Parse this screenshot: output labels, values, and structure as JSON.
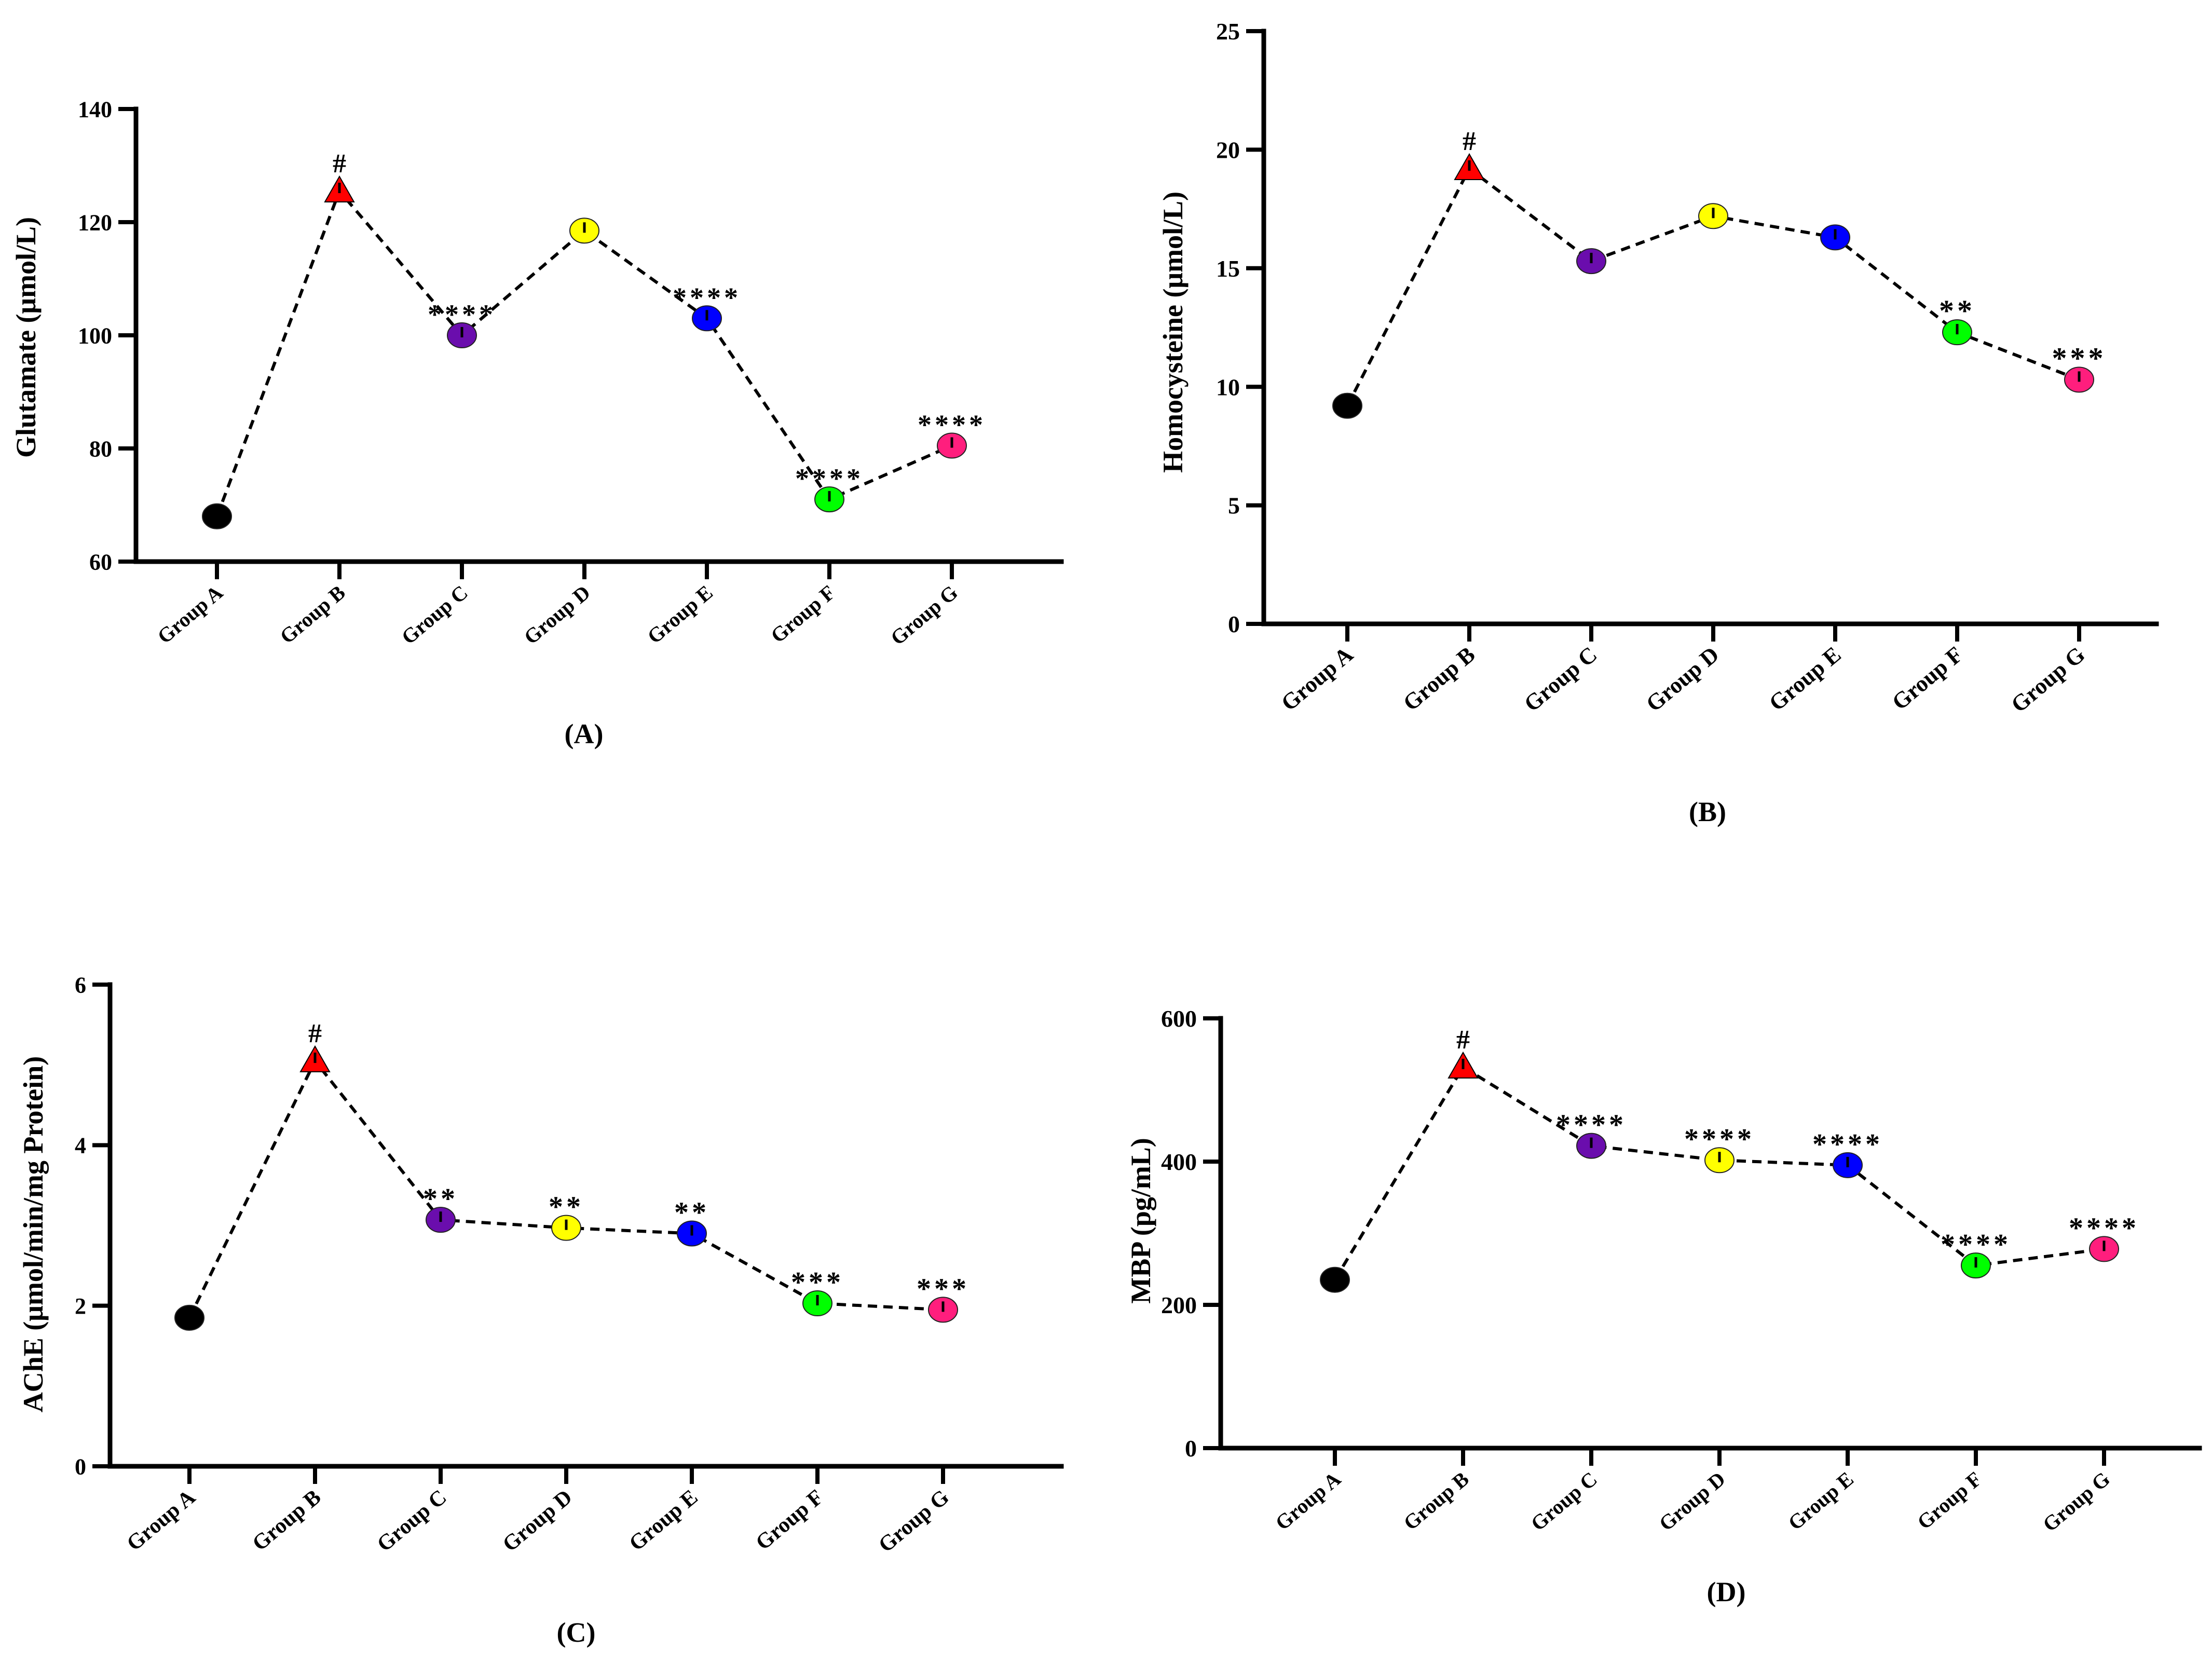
{
  "figure": {
    "groups": [
      "Group A",
      "Group B",
      "Group C",
      "Group D",
      "Group E",
      "Group F",
      "Group G"
    ],
    "point_colors": [
      "#000000",
      "#ff0000",
      "#6a0dad",
      "#ffff00",
      "#0000ff",
      "#00ff00",
      "#ff1e7d"
    ],
    "point_markers": [
      "circle",
      "triangle",
      "circle",
      "circle",
      "circle",
      "circle",
      "circle"
    ]
  },
  "chart_data": [
    {
      "type": "line",
      "panel_label": "(A)",
      "title": "",
      "xlabel": "",
      "ylabel": "Glutamate (μmol/L)",
      "ylim": [
        60,
        140
      ],
      "yticks": [
        60,
        80,
        100,
        120,
        140
      ],
      "categories": [
        "Group A",
        "Group B",
        "Group C",
        "Group D",
        "Group E",
        "Group F",
        "Group G"
      ],
      "values": [
        68,
        125.5,
        100,
        118.5,
        103,
        71,
        80.5
      ],
      "annotations": [
        "",
        "#",
        "****",
        "",
        "****",
        "****",
        "****"
      ],
      "line_style": "dashed"
    },
    {
      "type": "line",
      "panel_label": "(B)",
      "title": "",
      "xlabel": "",
      "ylabel": "Homocysteine (μmol/L)",
      "ylim": [
        0,
        25
      ],
      "yticks": [
        0,
        5,
        10,
        15,
        20,
        25
      ],
      "categories": [
        "Group A",
        "Group B",
        "Group C",
        "Group D",
        "Group E",
        "Group F",
        "Group G"
      ],
      "values": [
        9.2,
        19.2,
        15.3,
        17.2,
        16.3,
        12.3,
        10.3
      ],
      "annotations": [
        "",
        "#",
        "",
        "",
        "",
        "**",
        "***"
      ],
      "line_style": "dashed"
    },
    {
      "type": "line",
      "panel_label": "(C)",
      "title": "",
      "xlabel": "",
      "ylabel": "AChE (μmol/min/mg Protein)",
      "ylim": [
        0,
        6
      ],
      "yticks": [
        0,
        2,
        4,
        6
      ],
      "categories": [
        "Group A",
        "Group B",
        "Group C",
        "Group D",
        "Group E",
        "Group F",
        "Group G"
      ],
      "values": [
        1.85,
        5.05,
        3.07,
        2.97,
        2.9,
        2.03,
        1.95
      ],
      "annotations": [
        "",
        "#",
        "**",
        "**",
        "**",
        "***",
        "***"
      ],
      "line_style": "dashed"
    },
    {
      "type": "line",
      "panel_label": "(D)",
      "title": "",
      "xlabel": "",
      "ylabel": "MBP (pg/mL)",
      "ylim": [
        0,
        600
      ],
      "yticks": [
        0,
        200,
        400,
        600
      ],
      "categories": [
        "Group A",
        "Group B",
        "Group C",
        "Group D",
        "Group E",
        "Group F",
        "Group G"
      ],
      "values": [
        235,
        532,
        422,
        402,
        395,
        255,
        278
      ],
      "annotations": [
        "",
        "#",
        "****",
        "****",
        "****",
        "****",
        "****"
      ],
      "line_style": "dashed"
    }
  ]
}
